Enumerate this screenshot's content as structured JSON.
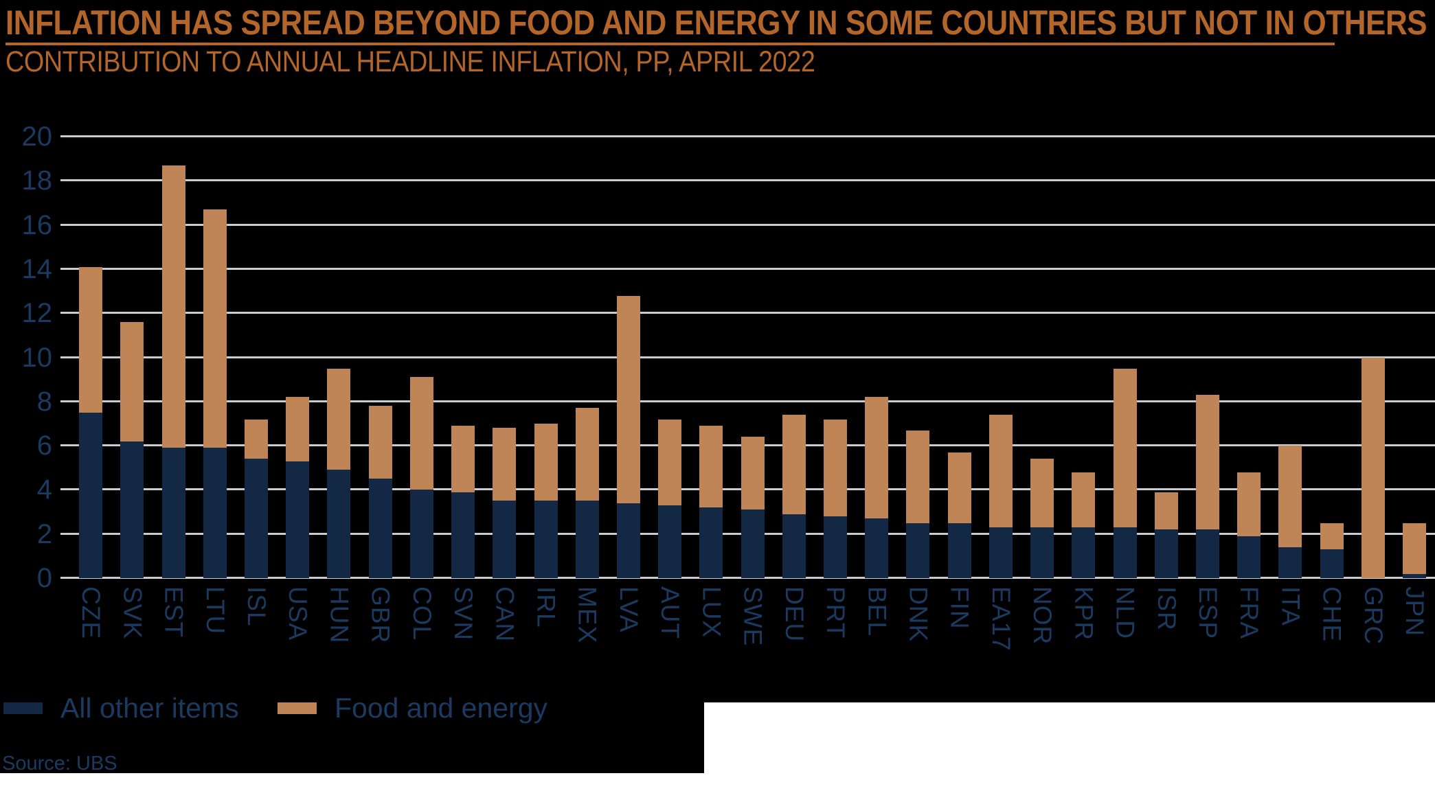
{
  "title": "INFLATION HAS SPREAD BEYOND FOOD AND ENERGY IN SOME COUNTRIES BUT NOT IN OTHERS",
  "subtitle": "CONTRIBUTION TO ANNUAL HEADLINE INFLATION, PP, APRIL 2022",
  "source": "Source: UBS",
  "colors": {
    "background": "#000000",
    "page_corner": "#ffffff",
    "title_text": "#b4652a",
    "title_underline": "#b4652a",
    "axis_text": "#1c3a60",
    "gridline": "#c8ccd1",
    "bar_other": "#122844",
    "bar_food": "#c08556"
  },
  "legend": {
    "items": [
      {
        "label": "All other items",
        "color": "#122844"
      },
      {
        "label": "Food and energy",
        "color": "#c08556"
      }
    ]
  },
  "chart_data": {
    "type": "bar",
    "stacked": true,
    "title": "INFLATION HAS SPREAD BEYOND FOOD AND ENERGY IN SOME COUNTRIES BUT NOT IN OTHERS",
    "subtitle": "CONTRIBUTION TO ANNUAL HEADLINE INFLATION, PP, APRIL 2022",
    "xlabel": "",
    "ylabel": "",
    "ylim": [
      0,
      20
    ],
    "yticks": [
      0,
      2,
      4,
      6,
      8,
      10,
      12,
      14,
      16,
      18,
      20
    ],
    "grid": true,
    "legend_position": "bottom-left",
    "categories": [
      "CZE",
      "SVK",
      "EST",
      "LTU",
      "ISL",
      "USA",
      "HUN",
      "GBR",
      "COL",
      "SVN",
      "CAN",
      "IRL",
      "MEX",
      "LVA",
      "AUT",
      "LUX",
      "SWE",
      "DEU",
      "PRT",
      "BEL",
      "DNK",
      "FIN",
      "EA17",
      "NOR",
      "KPR",
      "NLD",
      "ISR",
      "ESP",
      "FRA",
      "ITA",
      "CHE",
      "GRC",
      "JPN"
    ],
    "series": [
      {
        "name": "All other items",
        "values": [
          7.5,
          6.2,
          5.9,
          5.9,
          5.4,
          5.3,
          4.9,
          4.5,
          4.0,
          3.9,
          3.5,
          3.5,
          3.5,
          3.4,
          3.3,
          3.2,
          3.1,
          2.9,
          2.8,
          2.7,
          2.5,
          2.5,
          2.3,
          2.3,
          2.3,
          2.3,
          2.2,
          2.2,
          1.9,
          1.4,
          1.3,
          0.0,
          0.2
        ]
      },
      {
        "name": "Food and energy",
        "values": [
          6.6,
          5.4,
          12.8,
          10.8,
          1.8,
          2.9,
          4.6,
          3.3,
          5.1,
          3.0,
          3.3,
          3.5,
          4.2,
          9.4,
          3.9,
          3.7,
          3.3,
          4.5,
          4.4,
          5.5,
          4.2,
          3.2,
          5.1,
          3.1,
          2.5,
          7.2,
          1.7,
          6.1,
          2.9,
          4.6,
          1.2,
          10.0,
          2.3
        ]
      }
    ],
    "totals": [
      14.1,
      11.6,
      18.7,
      16.7,
      7.2,
      8.2,
      9.5,
      7.8,
      9.1,
      6.9,
      6.8,
      7.0,
      7.7,
      12.8,
      7.2,
      6.9,
      6.4,
      7.4,
      7.2,
      8.2,
      6.7,
      5.7,
      7.4,
      5.4,
      4.8,
      9.5,
      3.9,
      8.3,
      4.8,
      6.0,
      2.5,
      10.0,
      2.5
    ]
  }
}
